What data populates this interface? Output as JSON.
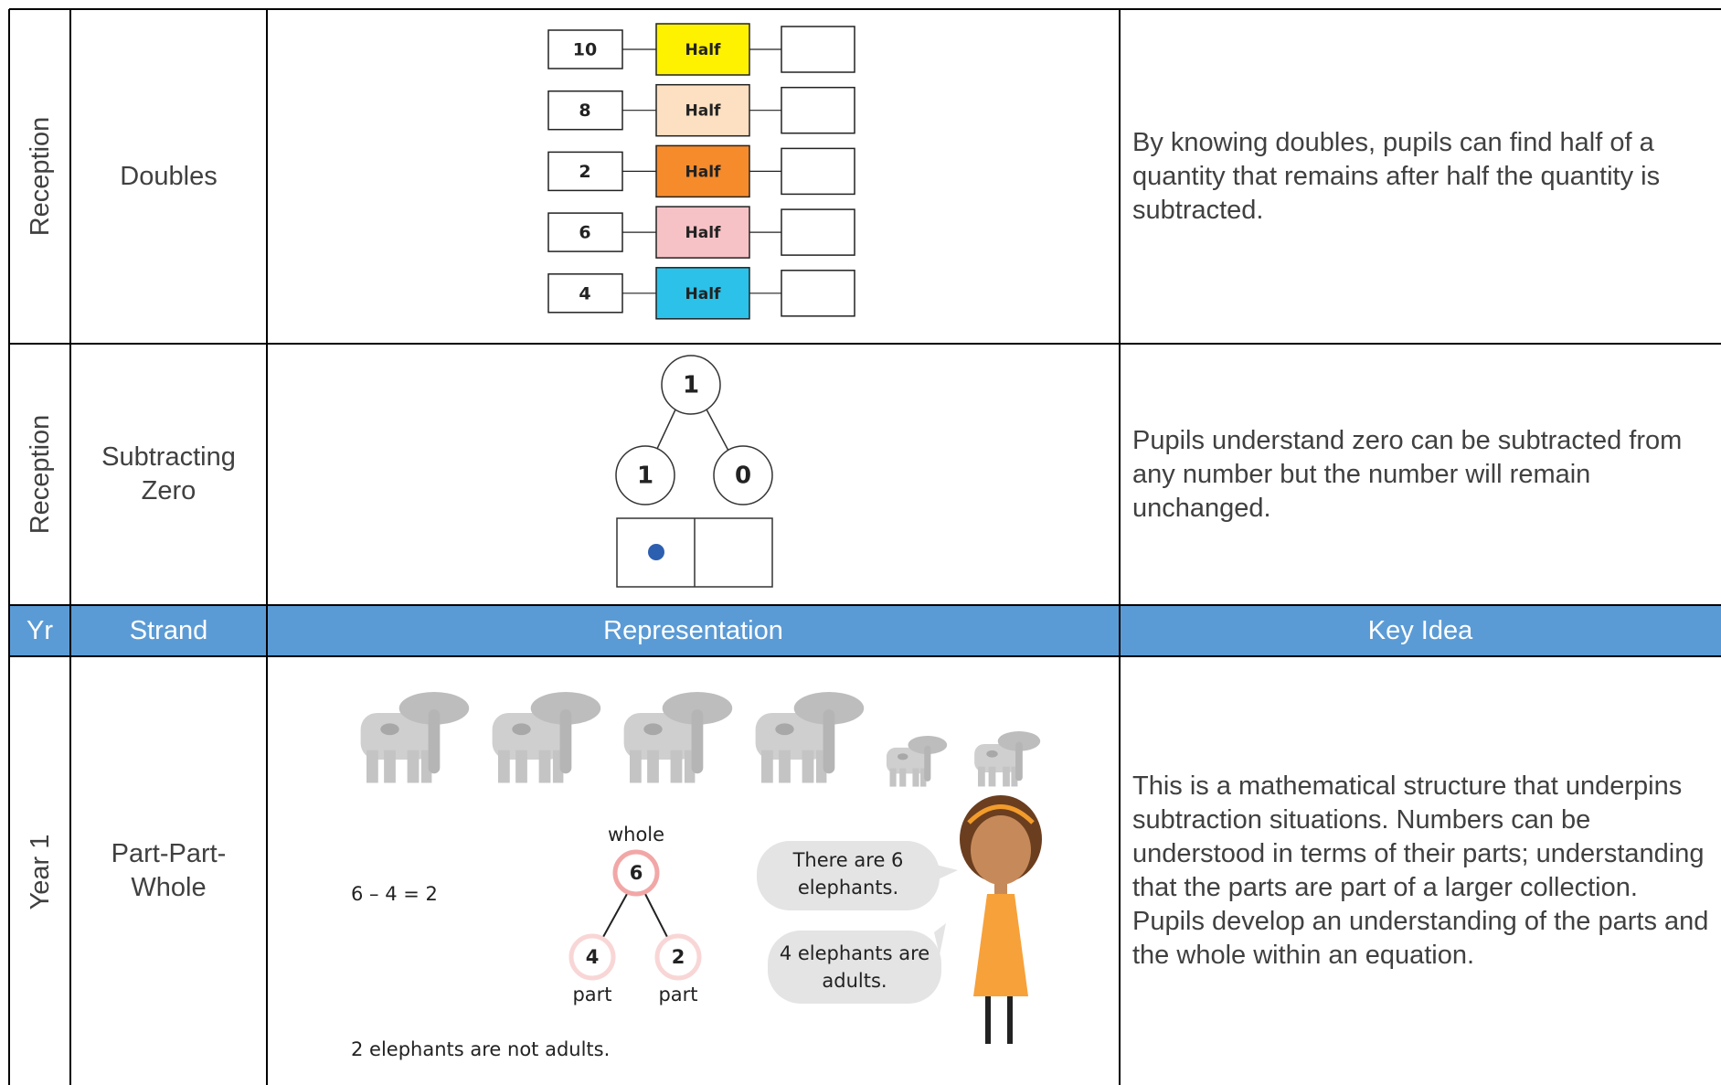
{
  "header": [
    "Yr",
    "Strand",
    "Representation",
    "Key Idea"
  ],
  "rows": [
    {
      "year": "Reception",
      "strand": "Doubles",
      "representation": {
        "machines": [
          {
            "input": "10",
            "label": "Half",
            "color": "#fff200"
          },
          {
            "input": "8",
            "label": "Half",
            "color": "#fde0c2"
          },
          {
            "input": "2",
            "label": "Half",
            "color": "#f68b2c"
          },
          {
            "input": "6",
            "label": "Half",
            "color": "#f7c2c6"
          },
          {
            "input": "4",
            "label": "Half",
            "color": "#2cc1e9"
          }
        ]
      },
      "key_idea": "By knowing doubles, pupils can find half of a quantity that remains after half the quantity is subtracted."
    },
    {
      "year": "Reception",
      "strand": "Subtracting Zero",
      "representation": {
        "whole": "1",
        "parts": [
          "1",
          "0"
        ]
      },
      "key_idea": "Pupils understand zero can be subtracted from any number but the number will remain unchanged."
    },
    {
      "year": "Year 1",
      "strand": "Part-Part-Whole",
      "representation": {
        "equation": "6 – 4 = 2",
        "whole_label": "whole",
        "whole": "6",
        "parts": [
          "4",
          "2"
        ],
        "part_labels": [
          "part",
          "part"
        ],
        "speech": [
          "There are 6 elephants.",
          "4 elephants are adults."
        ],
        "caption": "2 elephants are not adults."
      },
      "key_idea": "This is a mathematical structure that underpins subtraction situations. Numbers can be understood in terms of their parts; understanding that the parts are part of a larger collection. Pupils develop an understanding of the parts and the whole within an equation."
    }
  ]
}
